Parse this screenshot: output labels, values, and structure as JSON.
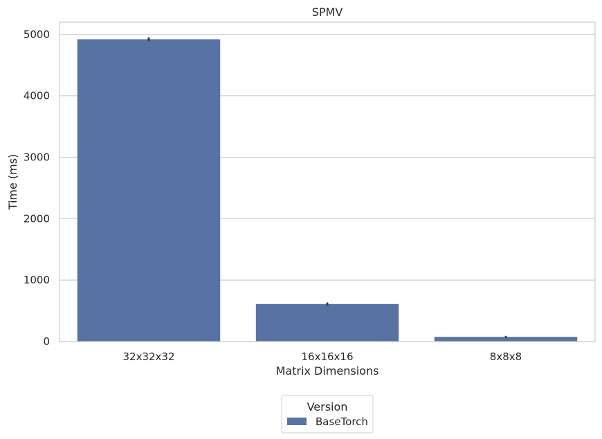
{
  "chart_data": {
    "type": "bar",
    "title": "SPMV",
    "xlabel": "Matrix Dimensions",
    "ylabel": "Time (ms)",
    "categories": [
      "32x32x32",
      "16x16x16",
      "8x8x8"
    ],
    "series": [
      {
        "name": "BaseTorch",
        "values": [
          4920,
          610,
          75
        ],
        "error": [
          15,
          10,
          3
        ]
      }
    ],
    "ylim": [
      0,
      5200
    ],
    "yticks": [
      0,
      1000,
      2000,
      3000,
      4000,
      5000
    ],
    "grid": true,
    "legend": {
      "title": "Version",
      "placement": "bottom-center"
    },
    "colors": {
      "bar": "#5773a3",
      "grid": "#cccccc",
      "errorbar": "#3a3a3a"
    }
  }
}
